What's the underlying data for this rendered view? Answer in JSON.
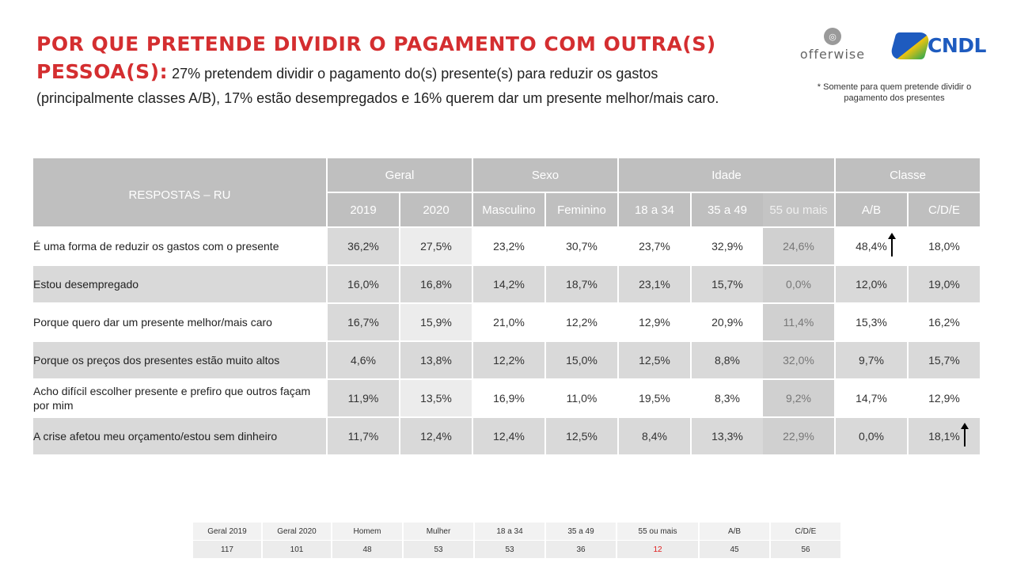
{
  "title": {
    "bold": "POR QUE PRETENDE DIVIDIR O PAGAMENTO COM OUTRA(S) PESSOA(S):",
    "text": " 27% pretendem dividir o pagamento do(s) presente(s) para reduzir os gastos (principalmente classes A/B), 17% estão desempregados e 16% querem dar um presente melhor/mais caro."
  },
  "logos": {
    "offerwise": "offerwise",
    "cndl": "CNDL"
  },
  "note": "* Somente para quem pretende dividir o pagamento dos presentes",
  "table": {
    "corner_label": "RESPOSTAS – RU",
    "groups": [
      "Geral",
      "Sexo",
      "Idade",
      "Classe"
    ],
    "columns": [
      "2019",
      "2020",
      "Masculino",
      "Feminino",
      "18 a 34",
      "35 a 49",
      "55 ou mais",
      "A/B",
      "C/D/E"
    ],
    "rows": [
      {
        "label": "É uma forma de reduzir os gastos com o presente",
        "values": [
          "36,2%",
          "27,5%",
          "23,2%",
          "30,7%",
          "23,7%",
          "32,9%",
          "24,6%",
          "48,4%",
          "18,0%"
        ]
      },
      {
        "label": "Estou desempregado",
        "values": [
          "16,0%",
          "16,8%",
          "14,2%",
          "18,7%",
          "23,1%",
          "15,7%",
          "0,0%",
          "12,0%",
          "19,0%"
        ]
      },
      {
        "label": "Porque quero dar um presente melhor/mais caro",
        "values": [
          "16,7%",
          "15,9%",
          "21,0%",
          "12,2%",
          "12,9%",
          "20,9%",
          "11,4%",
          "15,3%",
          "16,2%"
        ]
      },
      {
        "label": "Porque os preços dos presentes estão muito altos",
        "values": [
          "4,6%",
          "13,8%",
          "12,2%",
          "15,0%",
          "12,5%",
          "8,8%",
          "32,0%",
          "9,7%",
          "15,7%"
        ]
      },
      {
        "label": "Acho difícil escolher presente e prefiro que outros façam por mim",
        "values": [
          "11,9%",
          "13,5%",
          "16,9%",
          "11,0%",
          "19,5%",
          "8,3%",
          "9,2%",
          "14,7%",
          "12,9%"
        ]
      },
      {
        "label": "A crise afetou meu orçamento/estou sem dinheiro",
        "values": [
          "11,7%",
          "12,4%",
          "12,4%",
          "12,5%",
          "8,4%",
          "13,3%",
          "22,9%",
          "0,0%",
          "18,1%"
        ]
      }
    ],
    "arrows": [
      {
        "row": 0,
        "col": 7,
        "direction": "up"
      },
      {
        "row": 5,
        "col": 8,
        "direction": "up"
      }
    ]
  },
  "base": {
    "labels": [
      "Geral 2019",
      "Geral 2020",
      "Homem",
      "Mulher",
      "18 a 34",
      "35 a 49",
      "55 ou mais",
      "A/B",
      "C/D/E"
    ],
    "values": [
      "117",
      "101",
      "48",
      "53",
      "53",
      "36",
      "12",
      "45",
      "56"
    ],
    "highlight_color": "#e02020",
    "highlight_index": 6
  }
}
